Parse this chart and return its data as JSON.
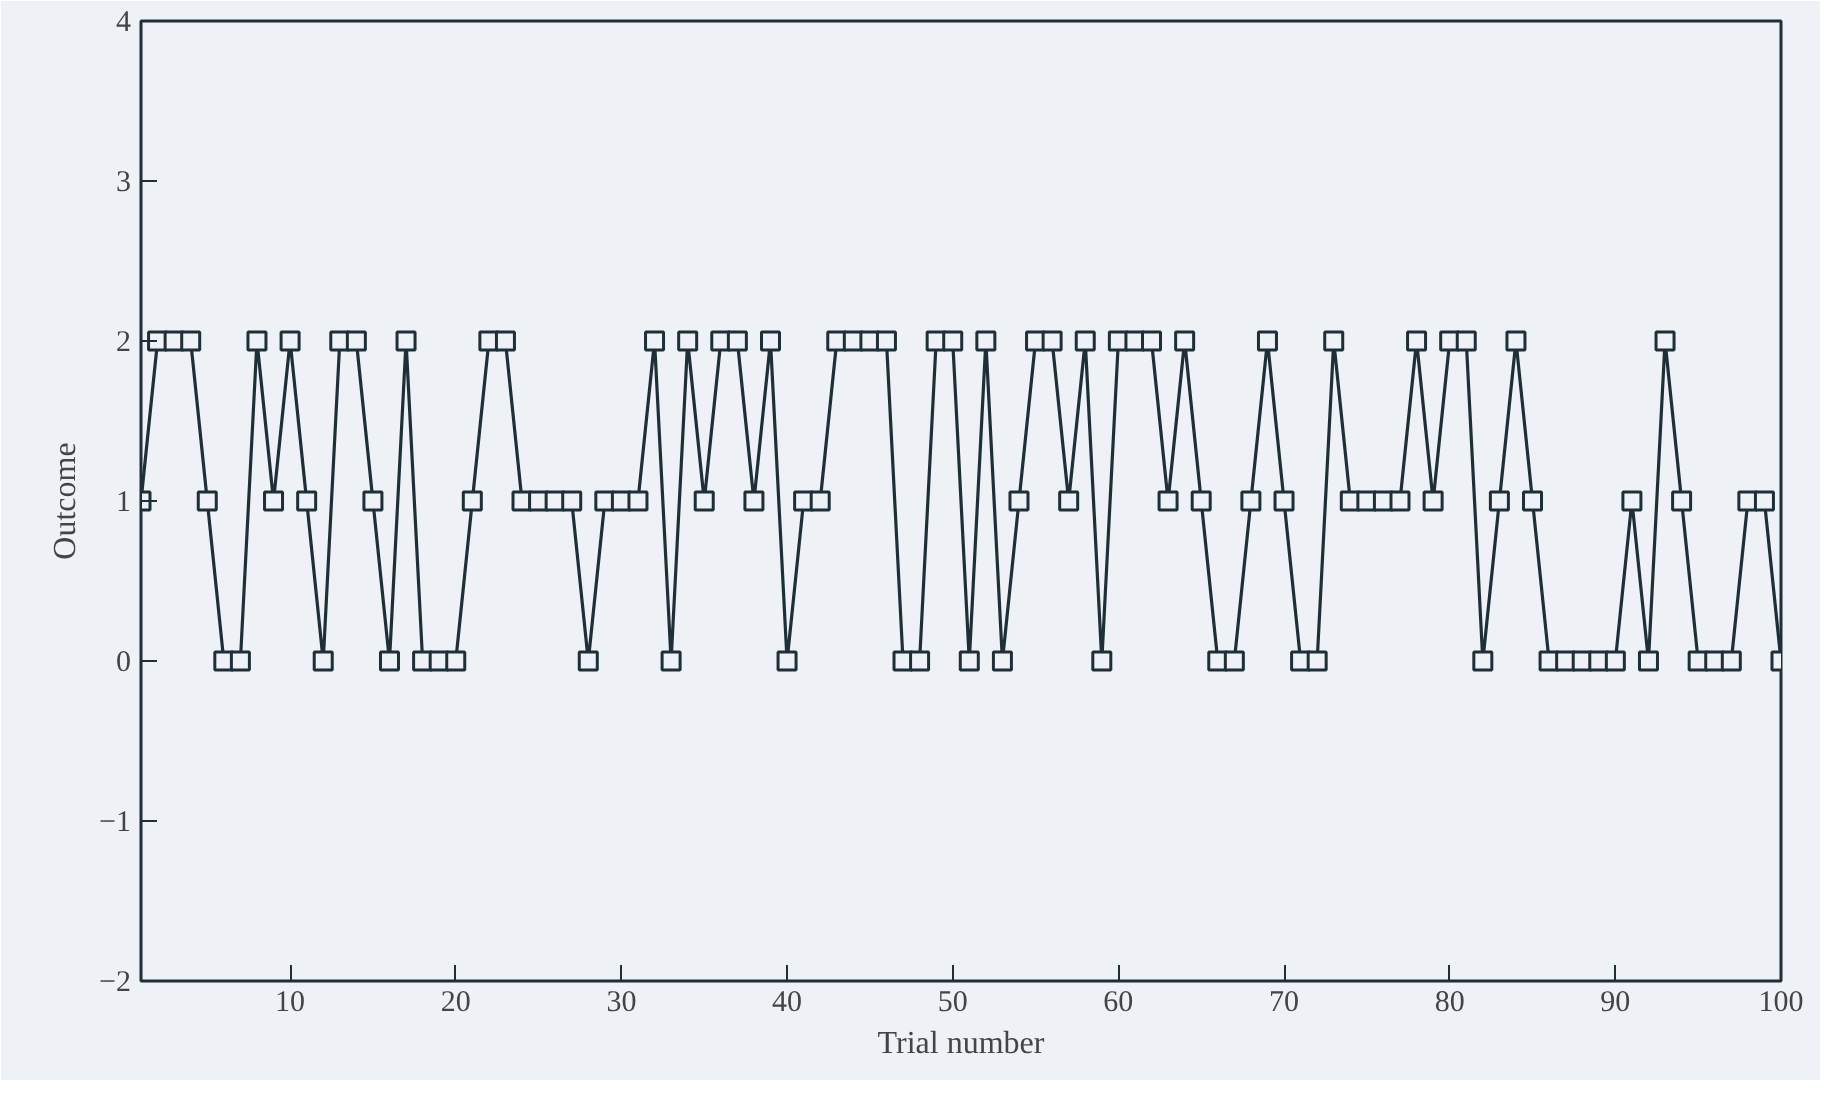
{
  "chart_data": {
    "type": "line",
    "xlabel": "Trial number",
    "ylabel": "Outcome",
    "x": [
      1,
      2,
      3,
      4,
      5,
      6,
      7,
      8,
      9,
      10,
      11,
      12,
      13,
      14,
      15,
      16,
      17,
      18,
      19,
      20,
      21,
      22,
      23,
      24,
      25,
      26,
      27,
      28,
      29,
      30,
      31,
      32,
      33,
      34,
      35,
      36,
      37,
      38,
      39,
      40,
      41,
      42,
      43,
      44,
      45,
      46,
      47,
      48,
      49,
      50,
      51,
      52,
      53,
      54,
      55,
      56,
      57,
      58,
      59,
      60,
      61,
      62,
      63,
      64,
      65,
      66,
      67,
      68,
      69,
      70,
      71,
      72,
      73,
      74,
      75,
      76,
      77,
      78,
      79,
      80,
      81,
      82,
      83,
      84,
      85,
      86,
      87,
      88,
      89,
      90,
      91,
      92,
      93,
      94,
      95,
      96,
      97,
      98,
      99,
      100
    ],
    "series": [
      {
        "color": "#1f2f38",
        "values": [
          1,
          2,
          2,
          2,
          1,
          0,
          0,
          2,
          1,
          2,
          1,
          0,
          2,
          2,
          1,
          0,
          2,
          0,
          0,
          0,
          1,
          2,
          2,
          1,
          1,
          1,
          1,
          0,
          1,
          1,
          1,
          2,
          0,
          2,
          1,
          2,
          2,
          1,
          2,
          0,
          1,
          1,
          2,
          2,
          2,
          2,
          0,
          0,
          2,
          2,
          0,
          2,
          0,
          1,
          2,
          2,
          1,
          2,
          0,
          2,
          2,
          2,
          1,
          2,
          1,
          0,
          0,
          1,
          2,
          1,
          0,
          0,
          2,
          1,
          1,
          1,
          1,
          2,
          1,
          2,
          2,
          0,
          1,
          2,
          1,
          0,
          0,
          0,
          0,
          0,
          1,
          0,
          2,
          1,
          0,
          0,
          0,
          1,
          1,
          0
        ]
      }
    ],
    "xlim": [
      1,
      100
    ],
    "xticks": [
      10,
      20,
      30,
      40,
      50,
      60,
      70,
      80,
      90,
      100
    ],
    "ylim": [
      -2,
      4
    ],
    "yticks": [
      -2,
      -1,
      0,
      1,
      2,
      3,
      4
    ],
    "marker": "square",
    "line_style": "solid",
    "grid": false
  }
}
